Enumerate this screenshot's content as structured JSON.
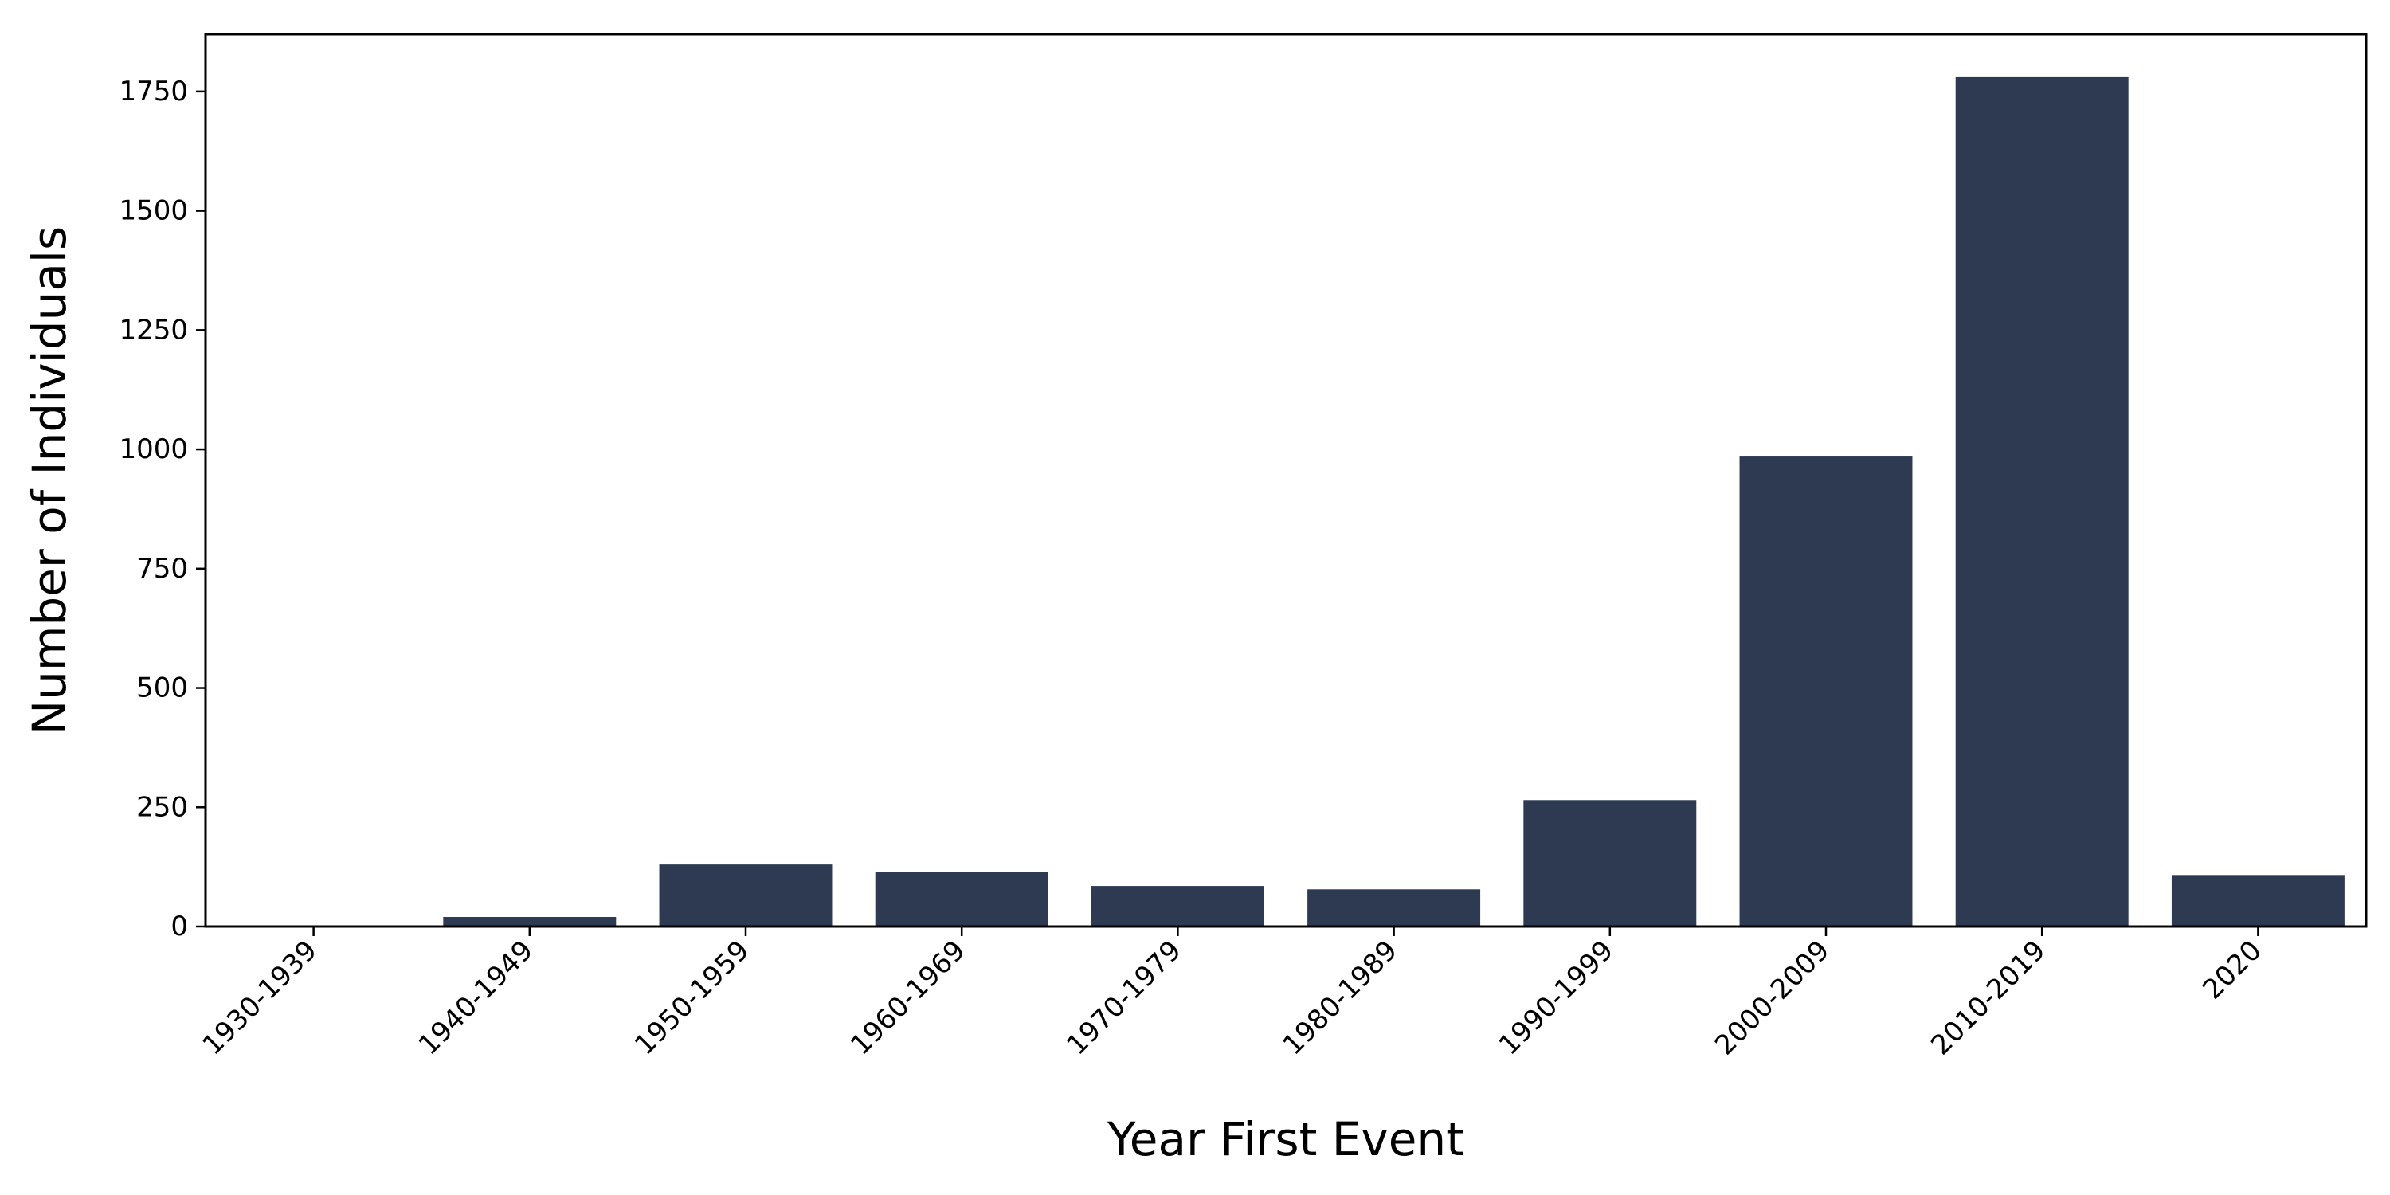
{
  "chart_data": {
    "type": "bar",
    "categories": [
      "1930-1939",
      "1940-1949",
      "1950-1959",
      "1960-1969",
      "1970-1979",
      "1980-1989",
      "1990-1999",
      "2000-2009",
      "2010-2019",
      "2020"
    ],
    "values": [
      2,
      20,
      130,
      115,
      85,
      78,
      265,
      985,
      1780,
      108
    ],
    "title": "",
    "xlabel": "Year First Event",
    "ylabel": "Number of Individuals",
    "ylim": [
      0,
      1870
    ],
    "yticks": [
      0,
      250,
      500,
      750,
      1000,
      1250,
      1500,
      1750
    ],
    "grid": false,
    "bar_color": "#2d3a52"
  }
}
